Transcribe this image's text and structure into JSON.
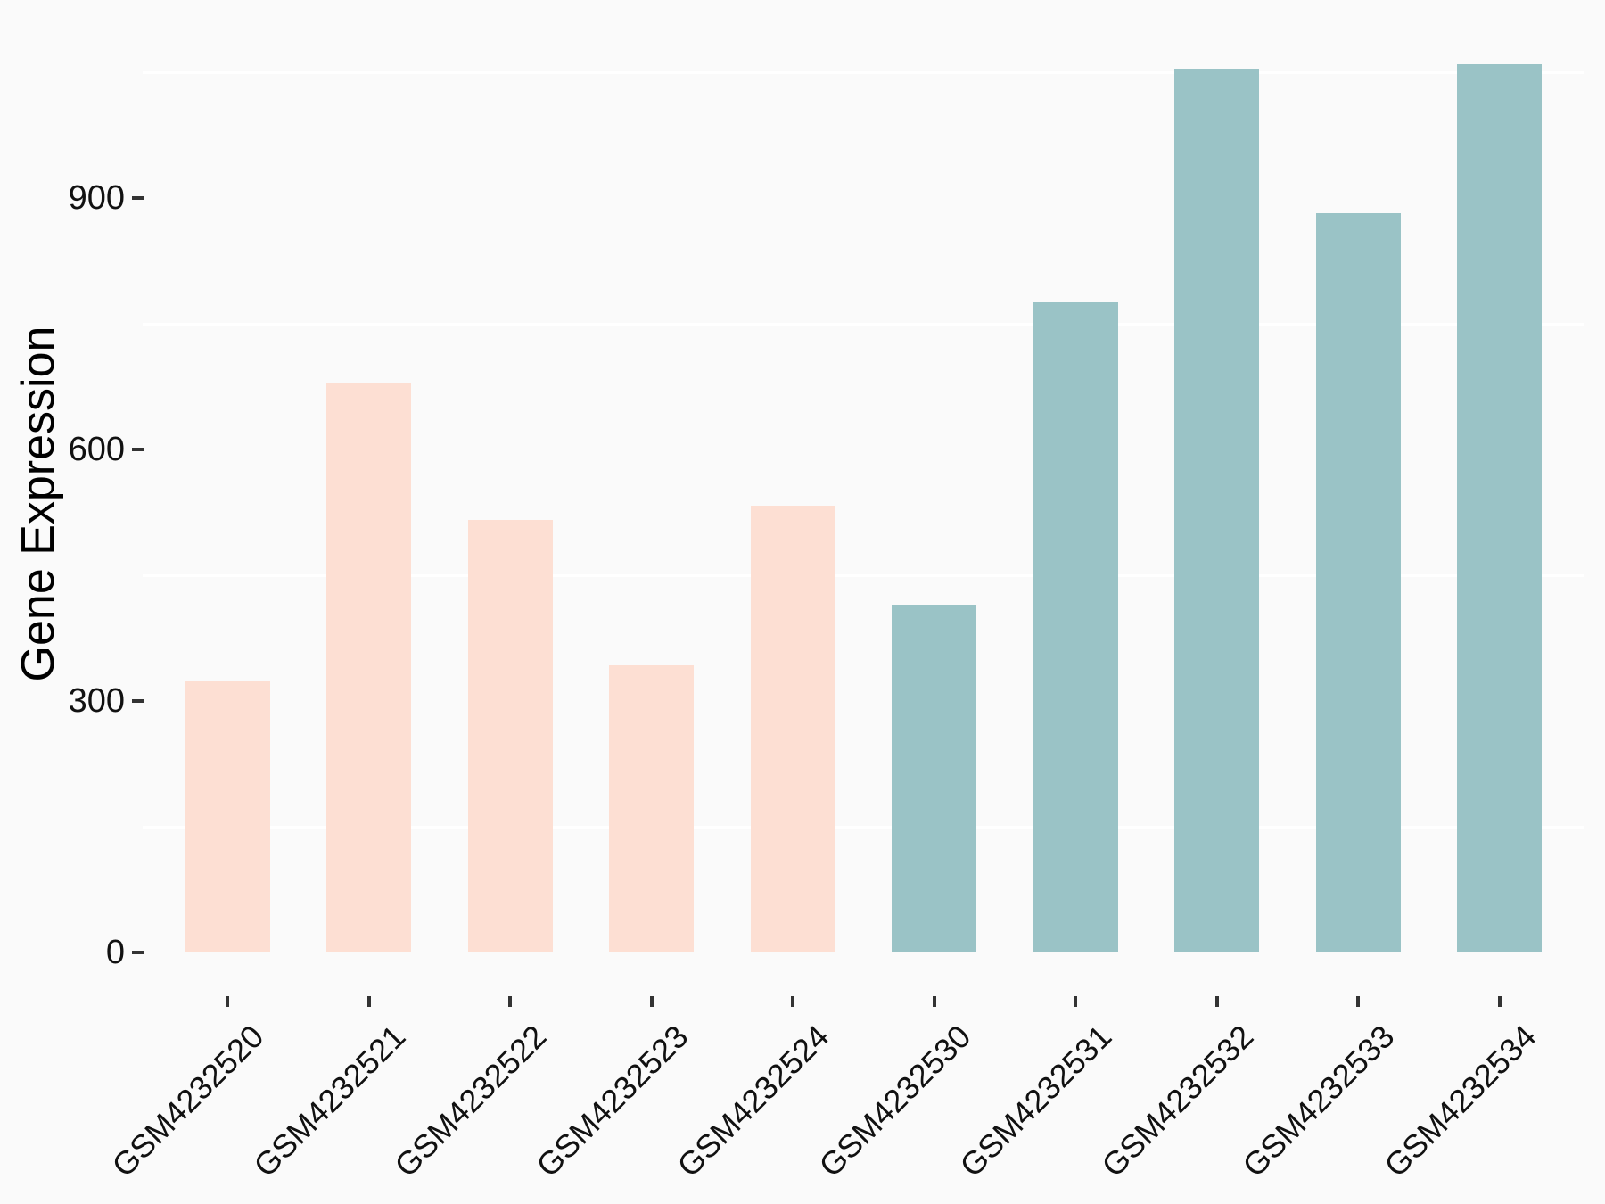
{
  "figure": {
    "background_color": "#FAFAFA",
    "gridline_color": "#FFFFFF",
    "tick_color": "#333333",
    "text_color": "#111111"
  },
  "chart_data": {
    "type": "bar",
    "title": "",
    "xlabel": "",
    "ylabel": "Gene Expression",
    "categories": [
      "GSM4232520",
      "GSM4232521",
      "GSM4232522",
      "GSM4232523",
      "GSM4232524",
      "GSM4232530",
      "GSM4232531",
      "GSM4232532",
      "GSM4232533",
      "GSM4232534"
    ],
    "values": [
      323,
      680,
      516,
      343,
      533,
      415,
      776,
      1054,
      882,
      1060
    ],
    "bar_colors": [
      "#FDDFD3",
      "#FDDFD3",
      "#FDDFD3",
      "#FDDFD3",
      "#FDDFD3",
      "#9AC3C6",
      "#9AC3C6",
      "#9AC3C6",
      "#9AC3C6",
      "#9AC3C6"
    ],
    "group_colors": {
      "pink": "#FDDFD3",
      "teal": "#9AC3C6"
    },
    "ytick_labels": [
      "0",
      "300",
      "600",
      "900"
    ],
    "yticks": [
      0,
      300,
      600,
      900
    ],
    "minor_gridlines": [
      150,
      450,
      750,
      1050
    ],
    "ylim": [
      -56,
      1113
    ],
    "grid": "minor-only",
    "legend": "none",
    "bar_width_fraction": 0.6,
    "x_label_angle_deg": 45
  }
}
